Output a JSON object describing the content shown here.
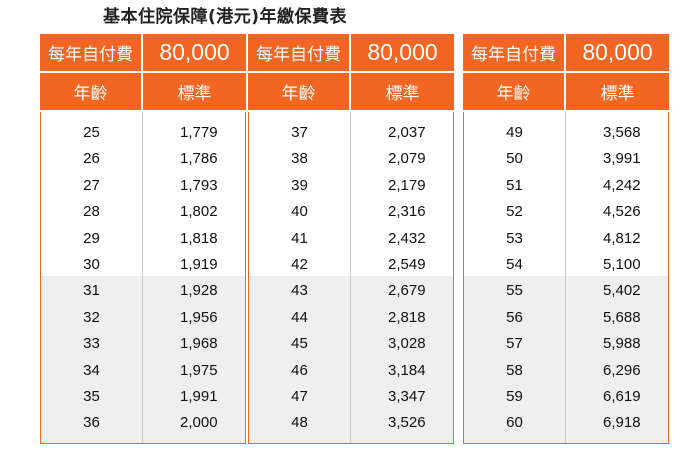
{
  "title": "基本住院保障(港元)年繳保費表",
  "header": {
    "deductible_label": "每年自付費",
    "deductible_value": "80,000",
    "age_label": "年齡",
    "standard_label": "標準"
  },
  "colors": {
    "accent": "#f26522",
    "shade": "#efefef"
  },
  "panels": [
    {
      "rows": [
        {
          "age": "25",
          "premium": "1,779"
        },
        {
          "age": "26",
          "premium": "1,786"
        },
        {
          "age": "27",
          "premium": "1,793"
        },
        {
          "age": "28",
          "premium": "1,802"
        },
        {
          "age": "29",
          "premium": "1,818"
        },
        {
          "age": "30",
          "premium": "1,919"
        },
        {
          "age": "31",
          "premium": "1,928"
        },
        {
          "age": "32",
          "premium": "1,956"
        },
        {
          "age": "33",
          "premium": "1,968"
        },
        {
          "age": "34",
          "premium": "1,975"
        },
        {
          "age": "35",
          "premium": "1,991"
        },
        {
          "age": "36",
          "premium": "2,000"
        }
      ]
    },
    {
      "rows": [
        {
          "age": "37",
          "premium": "2,037"
        },
        {
          "age": "38",
          "premium": "2,079"
        },
        {
          "age": "39",
          "premium": "2,179"
        },
        {
          "age": "40",
          "premium": "2,316"
        },
        {
          "age": "41",
          "premium": "2,432"
        },
        {
          "age": "42",
          "premium": "2,549"
        },
        {
          "age": "43",
          "premium": "2,679"
        },
        {
          "age": "44",
          "premium": "2,818"
        },
        {
          "age": "45",
          "premium": "3,028"
        },
        {
          "age": "46",
          "premium": "3,184"
        },
        {
          "age": "47",
          "premium": "3,347"
        },
        {
          "age": "48",
          "premium": "3,526"
        }
      ]
    },
    {
      "rows": [
        {
          "age": "49",
          "premium": "3,568"
        },
        {
          "age": "50",
          "premium": "3,991"
        },
        {
          "age": "51",
          "premium": "4,242"
        },
        {
          "age": "52",
          "premium": "4,526"
        },
        {
          "age": "53",
          "premium": "4,812"
        },
        {
          "age": "54",
          "premium": "5,100"
        },
        {
          "age": "55",
          "premium": "5,402"
        },
        {
          "age": "56",
          "premium": "5,688"
        },
        {
          "age": "57",
          "premium": "5,988"
        },
        {
          "age": "58",
          "premium": "6,296"
        },
        {
          "age": "59",
          "premium": "6,619"
        },
        {
          "age": "60",
          "premium": "6,918"
        }
      ]
    }
  ]
}
